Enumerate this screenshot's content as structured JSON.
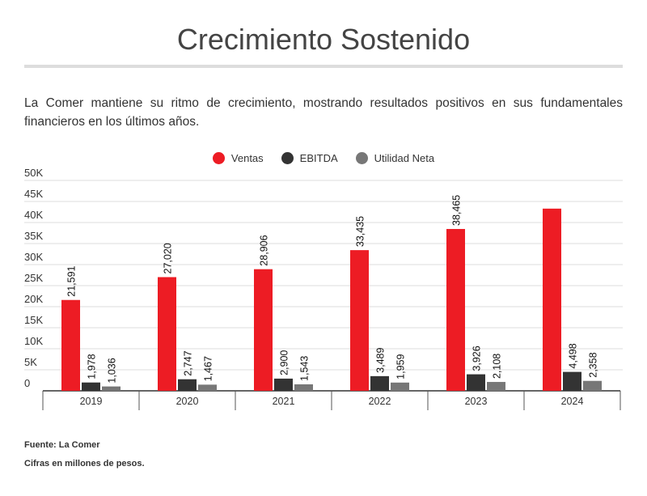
{
  "title": "Crecimiento Sostenido",
  "subtitle": "La Comer mantiene su ritmo de crecimiento, mostrando resultados positivos en sus fundamentales financieros en los últimos años.",
  "footer": {
    "source": "Fuente: La Comer",
    "note": "Cifras en millones de pesos."
  },
  "chart_data": {
    "type": "bar",
    "categories": [
      "2019",
      "2020",
      "2021",
      "2022",
      "2023",
      "2024"
    ],
    "series": [
      {
        "name": "Ventas",
        "color": "#ed1c24",
        "values": [
          21591,
          27020,
          28906,
          33435,
          38465,
          43300
        ],
        "labels": [
          "21,591",
          "27,020",
          "28,906",
          "33,435",
          "38,465",
          ""
        ]
      },
      {
        "name": "EBITDA",
        "color": "#333333",
        "values": [
          1978,
          2747,
          2900,
          3489,
          3926,
          4498
        ],
        "labels": [
          "1,978",
          "2,747",
          "2,900",
          "3,489",
          "3,926",
          "4,498"
        ]
      },
      {
        "name": "Utilidad Neta",
        "color": "#777777",
        "values": [
          1036,
          1467,
          1543,
          1959,
          2108,
          2358
        ],
        "labels": [
          "1,036",
          "1,467",
          "1,543",
          "1,959",
          "2,108",
          "2,358"
        ]
      }
    ],
    "ylim": [
      0,
      50000
    ],
    "yticks": [
      "0",
      "5K",
      "10K",
      "15K",
      "20K",
      "25K",
      "30K",
      "35K",
      "40K",
      "45K",
      "50K"
    ],
    "grid": true,
    "legend": "top"
  }
}
